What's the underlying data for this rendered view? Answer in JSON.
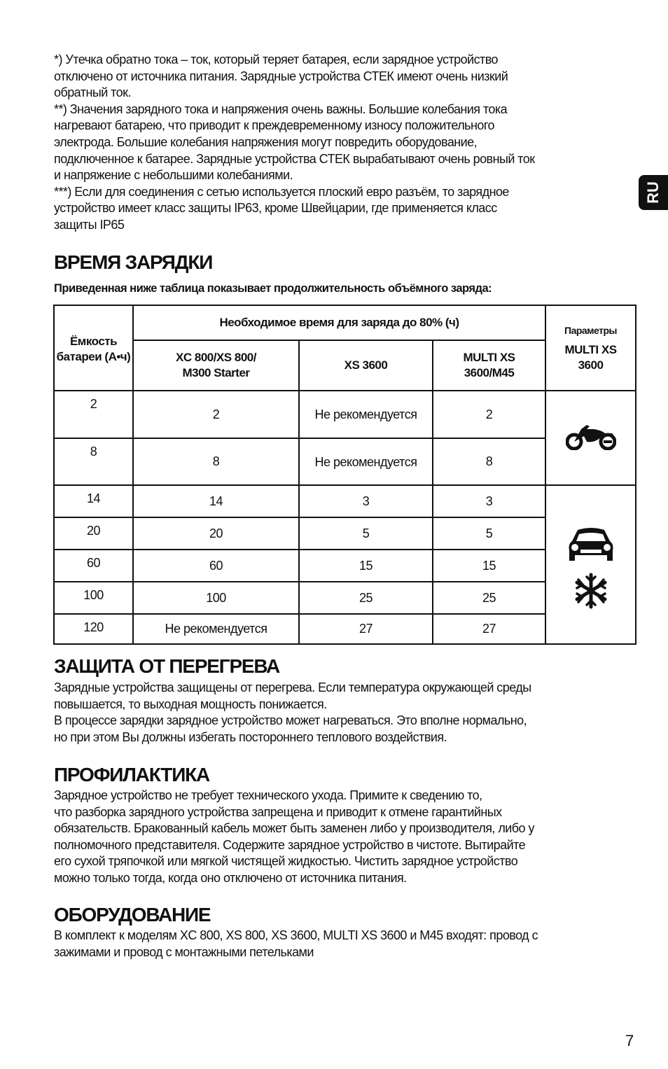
{
  "notes": [
    "*) Утечка обратно тока – ток, который теряет батарея, если зарядное устройство",
    "отключено от источника питания. Зарядные устройства СТЕК имеют очень низкий",
    "обратный ток.",
    "**) Значения зарядного тока и напряжения очень важны. Большие колебания тока",
    "нагревают батарею, что приводит к преждевременному износу положительного",
    "электрода. Большие колебания напряжения могут повредить оборудование,",
    "подключенное к батарее. Зарядные устройства СТЕК вырабатывают очень ровный ток",
    "и напряжение с небольшими колебаниями.",
    "***) Если для соединения с сетью используется плоский евро разъём, то зарядное",
    "устройство имеет класс защиты IP63, кроме Швейцарии, где применяется класс",
    "защиты IP65"
  ],
  "lang_tab": "RU",
  "charge_time": {
    "title": "ВРЕМЯ ЗАРЯДКИ",
    "subtitle": "Приведенная ниже таблица показывает продолжительность объёмного заряда:",
    "table": {
      "col_capacity": "Ёмкость батареи (А•ч)",
      "col_group": "Необходимое время для заряда до 80% (ч)",
      "col_params": "Параметры",
      "col_params_model": "MULTI XS 3600",
      "models": [
        "XC 800/XS 800/ M300 Starter",
        "XS 3600",
        "MULTI XS 3600/M45"
      ],
      "rows": [
        [
          "2",
          "2",
          "Не рекомендуется",
          "2"
        ],
        [
          "8",
          "8",
          "Не рекомендуется",
          "8"
        ],
        [
          "14",
          "14",
          "3",
          "3"
        ],
        [
          "20",
          "20",
          "5",
          "5"
        ],
        [
          "60",
          "60",
          "15",
          "15"
        ],
        [
          "100",
          "100",
          "25",
          "25"
        ],
        [
          "120",
          "Не рекомендуется",
          "27",
          "27"
        ]
      ],
      "icons": [
        "motorcycle-icon",
        "car-icon",
        "snowflake-icon"
      ]
    }
  },
  "overheat": {
    "title": "ЗАЩИТА ОТ ПЕРЕГРЕВА",
    "lines": [
      "Зарядные устройства защищены от перегрева. Если температура окружающей среды",
      "повышается, то выходная мощность понижается.",
      "В процессе зарядки зарядное устройство может нагреваться. Это вполне нормально,",
      "но при этом Вы должны избегать постороннего теплового воздействия."
    ]
  },
  "maintenance": {
    "title": "ПРОФИЛАКТИКА",
    "lines": [
      "Зарядное устройство не требует технического ухода. Примите к сведению то,",
      "что разборка зарядного устройства запрещена и приводит к отмене гарантийных",
      "обязательств. Бракованный кабель может быть заменен либо у производителя, либо у",
      "полномочного представителя. Содержите зарядное устройство в чистоте. Вытирайте",
      "его сухой тряпочкой или мягкой чистящей жидкостью. Чистить зарядное устройство",
      "можно только тогда, когда оно отключено от источника питания."
    ]
  },
  "equipment": {
    "title": "ОБОРУДОВАНИЕ",
    "lines": [
      "В комплект к моделям XC 800, XS 800, XS 3600, MULTI XS 3600 и M45 входят: провод с",
      "зажимами и провод с монтажными петельками"
    ]
  },
  "page_number": "7"
}
